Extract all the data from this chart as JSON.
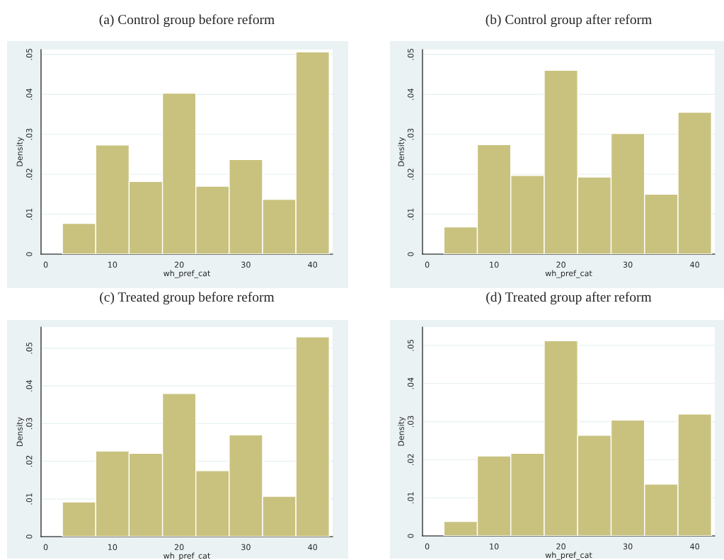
{
  "chart_data": [
    {
      "type": "histogram",
      "title": "(a) Control group before reform",
      "xlabel": "wh_pref_cat",
      "ylabel": "Density",
      "color": "#c9c27f",
      "bins": [
        2.5,
        7.5,
        12.5,
        17.5,
        22.5,
        27.5,
        32.5,
        37.5,
        42.5
      ],
      "values": [
        0.0077,
        0.0273,
        0.0182,
        0.0403,
        0.017,
        0.0237,
        0.0137,
        0.0506
      ],
      "xlim": [
        -0.7,
        43
      ],
      "xticks": [
        0,
        10,
        20,
        30,
        40
      ],
      "ylim": [
        0,
        0.0512
      ],
      "yticks": [
        0,
        {
          "value": 0.01,
          "label": ".01"
        },
        {
          "value": 0.02,
          "label": ".02"
        },
        {
          "value": 0.03,
          "label": ".03"
        },
        {
          "value": 0.04,
          "label": ".04"
        },
        {
          "value": 0.05,
          "label": ".05"
        }
      ],
      "grid": "y"
    },
    {
      "type": "histogram",
      "title": "(b) Control group after reform",
      "xlabel": "wh_pref_cat",
      "ylabel": "Density",
      "color": "#c9c27f",
      "bins": [
        2.5,
        7.5,
        12.5,
        17.5,
        22.5,
        27.5,
        32.5,
        37.5,
        42.5
      ],
      "values": [
        0.0068,
        0.0274,
        0.0197,
        0.046,
        0.0193,
        0.0302,
        0.015,
        0.0355
      ],
      "xlim": [
        -0.7,
        43
      ],
      "xticks": [
        0,
        10,
        20,
        30,
        40
      ],
      "ylim": [
        0,
        0.0512
      ],
      "yticks": [
        0,
        {
          "value": 0.01,
          "label": ".01"
        },
        {
          "value": 0.02,
          "label": ".02"
        },
        {
          "value": 0.03,
          "label": ".03"
        },
        {
          "value": 0.04,
          "label": ".04"
        },
        {
          "value": 0.05,
          "label": ".05"
        }
      ],
      "grid": "y"
    },
    {
      "type": "histogram",
      "title": "(c) Treated group before reform",
      "xlabel": "wh_pref_cat",
      "ylabel": "Density",
      "color": "#c9c27f",
      "bins": [
        2.5,
        7.5,
        12.5,
        17.5,
        22.5,
        27.5,
        32.5,
        37.5,
        42.5
      ],
      "values": [
        0.0092,
        0.0227,
        0.0221,
        0.038,
        0.0175,
        0.027,
        0.0107,
        0.053
      ],
      "xlim": [
        -0.7,
        43
      ],
      "xticks": [
        0,
        10,
        20,
        30,
        40
      ],
      "ylim": [
        0,
        0.0556
      ],
      "yticks": [
        0,
        {
          "value": 0.01,
          "label": ".01"
        },
        {
          "value": 0.02,
          "label": ".02"
        },
        {
          "value": 0.03,
          "label": ".03"
        },
        {
          "value": 0.04,
          "label": ".04"
        },
        {
          "value": 0.05,
          "label": ".05"
        }
      ],
      "grid": "y"
    },
    {
      "type": "histogram",
      "title": "(d) Treated group after reform",
      "xlabel": "wh_pref_cat",
      "ylabel": "Density",
      "color": "#c9c27f",
      "bins": [
        2.5,
        7.5,
        12.5,
        17.5,
        22.5,
        27.5,
        32.5,
        37.5,
        42.5
      ],
      "values": [
        0.0038,
        0.021,
        0.0217,
        0.0512,
        0.0264,
        0.0304,
        0.0136,
        0.032
      ],
      "xlim": [
        -0.7,
        43
      ],
      "xticks": [
        0,
        10,
        20,
        30,
        40
      ],
      "ylim": [
        0,
        0.0548
      ],
      "yticks": [
        0,
        {
          "value": 0.01,
          "label": ".01"
        },
        {
          "value": 0.02,
          "label": ".02"
        },
        {
          "value": 0.03,
          "label": ".03"
        },
        {
          "value": 0.04,
          "label": ".04"
        },
        {
          "value": 0.05,
          "label": ".05"
        }
      ],
      "grid": "y"
    }
  ]
}
